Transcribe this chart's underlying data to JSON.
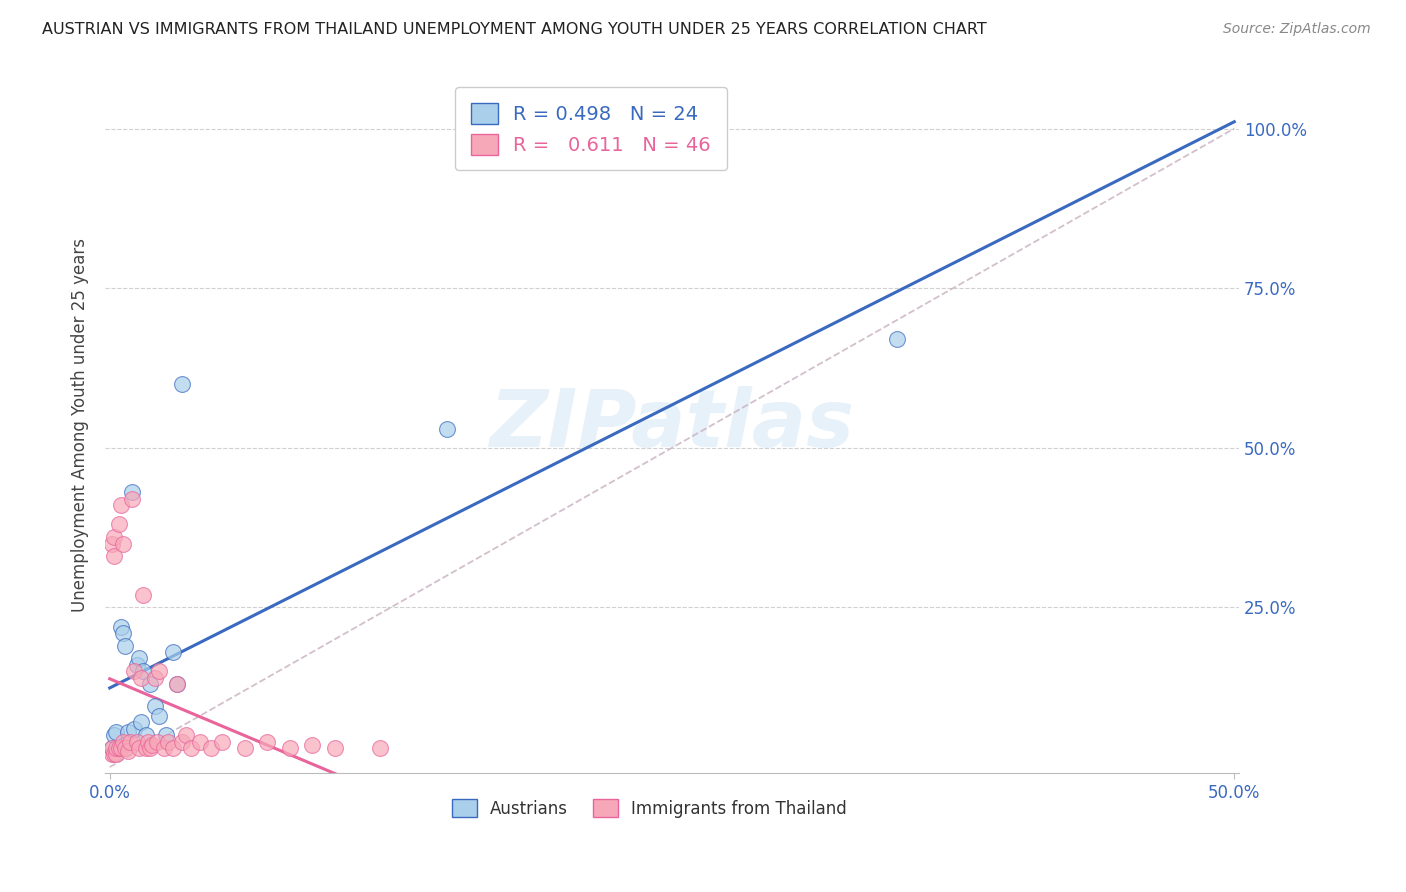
{
  "title": "AUSTRIAN VS IMMIGRANTS FROM THAILAND UNEMPLOYMENT AMONG YOUTH UNDER 25 YEARS CORRELATION CHART",
  "source": "Source: ZipAtlas.com",
  "ylabel": "Unemployment Among Youth under 25 years",
  "legend_entries": [
    {
      "label": "Austrians",
      "R": "0.498",
      "N": "24",
      "color": "#aacfea"
    },
    {
      "label": "Immigrants from Thailand",
      "R": "0.611",
      "N": "46",
      "color": "#f7a8b8"
    }
  ],
  "austrians_line_color": "#3a6abf",
  "thai_line_color": "#e8649a",
  "diagonal_color": "#c8b0c0",
  "watermark": "ZIPatlas",
  "background_color": "#ffffff",
  "title_color": "#222222",
  "tick_color": "#3a6abf",
  "austrians_x": [
    0.001,
    0.002,
    0.003,
    0.004,
    0.005,
    0.006,
    0.007,
    0.008,
    0.01,
    0.011,
    0.012,
    0.013,
    0.014,
    0.015,
    0.016,
    0.018,
    0.02,
    0.022,
    0.025,
    0.028,
    0.03,
    0.032,
    0.15,
    0.35
  ],
  "austrians_y": [
    0.03,
    0.05,
    0.055,
    0.03,
    0.22,
    0.21,
    0.19,
    0.055,
    0.43,
    0.06,
    0.16,
    0.17,
    0.07,
    0.15,
    0.05,
    0.13,
    0.095,
    0.08,
    0.05,
    0.18,
    0.13,
    0.6,
    0.53,
    0.67
  ],
  "thai_x": [
    0.001,
    0.001,
    0.001,
    0.002,
    0.002,
    0.002,
    0.003,
    0.003,
    0.004,
    0.004,
    0.005,
    0.005,
    0.006,
    0.006,
    0.007,
    0.008,
    0.009,
    0.01,
    0.011,
    0.012,
    0.013,
    0.014,
    0.015,
    0.016,
    0.017,
    0.018,
    0.019,
    0.02,
    0.021,
    0.022,
    0.024,
    0.026,
    0.028,
    0.03,
    0.032,
    0.034,
    0.036,
    0.04,
    0.045,
    0.05,
    0.06,
    0.07,
    0.08,
    0.09,
    0.1,
    0.12
  ],
  "thai_y": [
    0.02,
    0.03,
    0.35,
    0.02,
    0.33,
    0.36,
    0.02,
    0.03,
    0.03,
    0.38,
    0.03,
    0.41,
    0.04,
    0.35,
    0.03,
    0.025,
    0.04,
    0.42,
    0.15,
    0.04,
    0.03,
    0.14,
    0.27,
    0.03,
    0.04,
    0.03,
    0.035,
    0.14,
    0.04,
    0.15,
    0.03,
    0.04,
    0.03,
    0.13,
    0.04,
    0.05,
    0.03,
    0.04,
    0.03,
    0.04,
    0.03,
    0.04,
    0.03,
    0.035,
    0.03,
    0.03
  ],
  "xlim": [
    0.0,
    0.5
  ],
  "ylim": [
    0.0,
    1.05
  ],
  "xtick_positions": [
    0.0,
    0.5
  ],
  "xtick_labels": [
    "0.0%",
    "50.0%"
  ],
  "ytick_positions": [
    0.25,
    0.5,
    0.75,
    1.0
  ],
  "ytick_labels": [
    "25.0%",
    "50.0%",
    "75.0%",
    "100.0%"
  ]
}
